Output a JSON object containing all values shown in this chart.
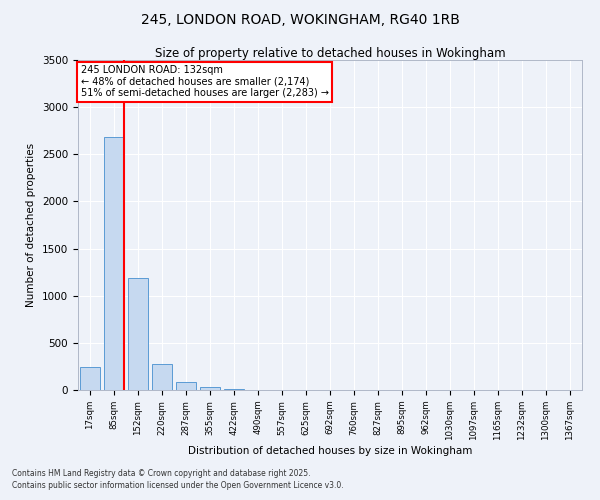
{
  "title_line1": "245, LONDON ROAD, WOKINGHAM, RG40 1RB",
  "title_line2": "Size of property relative to detached houses in Wokingham",
  "xlabel": "Distribution of detached houses by size in Wokingham",
  "ylabel": "Number of detached properties",
  "bar_labels": [
    "17sqm",
    "85sqm",
    "152sqm",
    "220sqm",
    "287sqm",
    "355sqm",
    "422sqm",
    "490sqm",
    "557sqm",
    "625sqm",
    "692sqm",
    "760sqm",
    "827sqm",
    "895sqm",
    "962sqm",
    "1030sqm",
    "1097sqm",
    "1165sqm",
    "1232sqm",
    "1300sqm",
    "1367sqm"
  ],
  "bar_values": [
    240,
    2680,
    1190,
    275,
    85,
    30,
    10,
    5,
    0,
    0,
    0,
    0,
    0,
    0,
    0,
    0,
    0,
    0,
    0,
    0,
    0
  ],
  "bar_color": "#c6d9f0",
  "bar_edge_color": "#5b9bd5",
  "vline_color": "red",
  "vline_pos": 1.5,
  "ylim": [
    0,
    3500
  ],
  "yticks": [
    0,
    500,
    1000,
    1500,
    2000,
    2500,
    3000,
    3500
  ],
  "annotation_title": "245 LONDON ROAD: 132sqm",
  "annotation_line2": "← 48% of detached houses are smaller (2,174)",
  "annotation_line3": "51% of semi-detached houses are larger (2,283) →",
  "annotation_box_color": "white",
  "annotation_box_edge": "red",
  "footnote_line1": "Contains HM Land Registry data © Crown copyright and database right 2025.",
  "footnote_line2": "Contains public sector information licensed under the Open Government Licence v3.0.",
  "bg_color": "#eef2f9",
  "grid_color": "white",
  "title1_fontsize": 10,
  "title2_fontsize": 8.5,
  "annot_fontsize": 7,
  "footnote_fontsize": 5.5
}
